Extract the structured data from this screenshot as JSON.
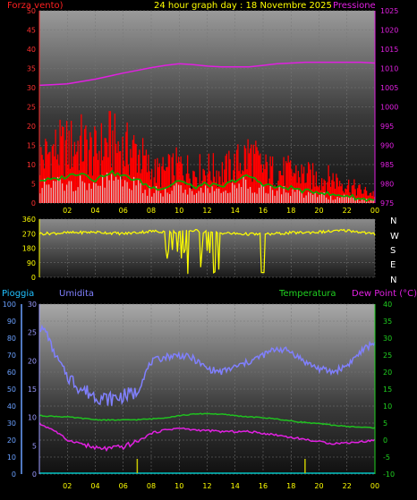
{
  "header": {
    "title": "24 hour graph day : 18 Novembre 2025",
    "left_label": "Forza vento)",
    "right_label": "Pressione"
  },
  "colors": {
    "wind_gust": "#ff0000",
    "wind_avg": "#00b000",
    "wind_calm": "#e0e0e0",
    "pressure": "#e020e0",
    "direction": "#ffff00",
    "humidity": "#8080ff",
    "temperature": "#20c020",
    "dew_point": "#e020e0",
    "rain": "#00c0c0",
    "axis_wind": "#ff3030",
    "axis_pressure": "#e020e0",
    "axis_temp": "#20d020",
    "axis_rain": "#6aa0ff",
    "axis_hum": "#9a9aff"
  },
  "compass": [
    "N",
    "W",
    "S",
    "E",
    "N"
  ],
  "bottom_labels": {
    "rain": "Pioggia",
    "humidity": "Umidita",
    "temperature": "Temperatura",
    "dew_point": "Dew Point (°C)"
  },
  "chart_data": [
    {
      "type": "line",
      "name": "wind_pressure",
      "x_ticks": [
        "02",
        "04",
        "06",
        "08",
        "10",
        "12",
        "14",
        "16",
        "18",
        "20",
        "22",
        "00"
      ],
      "y_left_ticks": [
        "0",
        "5",
        "10",
        "15",
        "20",
        "25",
        "30",
        "35",
        "40",
        "45",
        "50"
      ],
      "y_left_range": [
        0,
        50
      ],
      "y_right_ticks": [
        "975",
        "980",
        "985",
        "990",
        "995",
        "1000",
        "1005",
        "1010",
        "1015",
        "1020",
        "1025"
      ],
      "y_right_range": [
        975,
        1025
      ],
      "x_range": [
        0,
        24
      ],
      "series": [
        {
          "key": "gust",
          "x": [
            0,
            1,
            2,
            3,
            4,
            5,
            6,
            7,
            8,
            9,
            10,
            11,
            12,
            13,
            14,
            15,
            16,
            17,
            18,
            19,
            20,
            21,
            22,
            23,
            24
          ],
          "y": [
            14,
            17,
            18,
            19,
            16,
            20,
            17,
            17,
            10,
            10,
            12,
            10,
            11,
            10,
            12,
            16,
            11,
            10,
            10,
            9,
            8,
            8,
            6,
            4,
            3
          ]
        },
        {
          "key": "avg",
          "x": [
            0,
            1,
            2,
            3,
            4,
            5,
            6,
            7,
            8,
            9,
            10,
            11,
            12,
            13,
            14,
            15,
            16,
            17,
            18,
            19,
            20,
            21,
            22,
            23,
            24
          ],
          "y": [
            6,
            6,
            7,
            8,
            6,
            8,
            7,
            6,
            4,
            4,
            6,
            4,
            5,
            4,
            6,
            7,
            5,
            4,
            4,
            3,
            3,
            2,
            2,
            1,
            1
          ]
        },
        {
          "key": "pressure",
          "x": [
            0,
            1,
            2,
            3,
            4,
            5,
            6,
            7,
            8,
            9,
            10,
            11,
            12,
            13,
            14,
            15,
            16,
            17,
            18,
            19,
            20,
            21,
            22,
            23,
            24
          ],
          "y": [
            1005.6,
            1005.8,
            1006,
            1006.6,
            1007.2,
            1008,
            1008.8,
            1009.5,
            1010.2,
            1010.8,
            1011.2,
            1011,
            1010.6,
            1010.4,
            1010.4,
            1010.4,
            1010.8,
            1011.2,
            1011.4,
            1011.6,
            1011.6,
            1011.6,
            1011.6,
            1011.6,
            1011.4
          ]
        }
      ]
    },
    {
      "type": "line",
      "name": "wind_direction",
      "y_ticks": [
        "360",
        "270",
        "180",
        "90",
        "0"
      ],
      "y_range": [
        0,
        360
      ],
      "x_range": [
        0,
        24
      ],
      "series": [
        {
          "key": "direction",
          "x": [
            0,
            2,
            4,
            6,
            8,
            10,
            11,
            12,
            13,
            14,
            16,
            18,
            20,
            22,
            23,
            24
          ],
          "y": [
            270,
            275,
            280,
            270,
            285,
            280,
            290,
            280,
            275,
            270,
            265,
            275,
            280,
            290,
            280,
            265
          ]
        }
      ]
    },
    {
      "type": "line",
      "name": "humidity_temperature",
      "x_ticks": [
        "02",
        "04",
        "06",
        "08",
        "10",
        "12",
        "14",
        "16",
        "18",
        "20",
        "22",
        "00"
      ],
      "x_range": [
        0,
        24
      ],
      "y_rain_ticks": [
        "0",
        "10",
        "20",
        "30",
        "40",
        "50",
        "60",
        "70",
        "80",
        "90",
        "100"
      ],
      "y_rain_range": [
        0,
        100
      ],
      "y_hum_ticks": [
        "0",
        "5",
        "10",
        "15",
        "20",
        "25",
        "30"
      ],
      "y_hum_range": [
        0,
        30
      ],
      "y_temp_ticks": [
        "-10",
        "-5",
        "0",
        "5",
        "10",
        "15",
        "20",
        "25",
        "30",
        "35",
        "40"
      ],
      "y_temp_range": [
        -10,
        40
      ],
      "series": [
        {
          "key": "humidity",
          "x": [
            0,
            0.5,
            1,
            2,
            3,
            4,
            5,
            6,
            7,
            7.5,
            8,
            9,
            10,
            11,
            12,
            13,
            14,
            15,
            16,
            17,
            18,
            19,
            20,
            21,
            22,
            23,
            24
          ],
          "y": [
            86,
            84,
            72,
            58,
            50,
            46,
            44,
            46,
            48,
            58,
            66,
            69,
            70,
            68,
            62,
            60,
            63,
            66,
            70,
            74,
            72,
            66,
            62,
            60,
            64,
            72,
            78
          ]
        },
        {
          "key": "temperature",
          "x": [
            0,
            1,
            2,
            3,
            4,
            5,
            6,
            7,
            8,
            9,
            10,
            11,
            12,
            13,
            14,
            15,
            16,
            17,
            18,
            19,
            20,
            21,
            22,
            23,
            24
          ],
          "y": [
            7.2,
            7,
            6.8,
            6.4,
            6,
            5.9,
            5.9,
            6,
            6.2,
            6.6,
            7.2,
            7.6,
            7.8,
            7.6,
            7.2,
            6.8,
            6.6,
            6.2,
            5.6,
            5.2,
            4.8,
            4.4,
            4.0,
            3.8,
            3.6
          ]
        },
        {
          "key": "dew_point",
          "x": [
            0,
            1,
            2,
            3,
            4,
            5,
            6,
            7,
            8,
            9,
            10,
            11,
            12,
            13,
            14,
            15,
            16,
            17,
            18,
            19,
            20,
            21,
            22,
            23,
            24
          ],
          "y": [
            4.8,
            3,
            0,
            -1,
            -2.5,
            -2.5,
            -2,
            -0.5,
            2,
            3,
            3.5,
            3,
            2.8,
            2.5,
            2.5,
            2.5,
            2,
            1.5,
            0.8,
            0.2,
            -0.5,
            -1,
            -0.8,
            -0.5,
            0
          ]
        },
        {
          "key": "rain",
          "x": [
            0,
            24
          ],
          "y": [
            0,
            0
          ]
        }
      ],
      "rain_marks_x": [
        7,
        19
      ]
    }
  ]
}
